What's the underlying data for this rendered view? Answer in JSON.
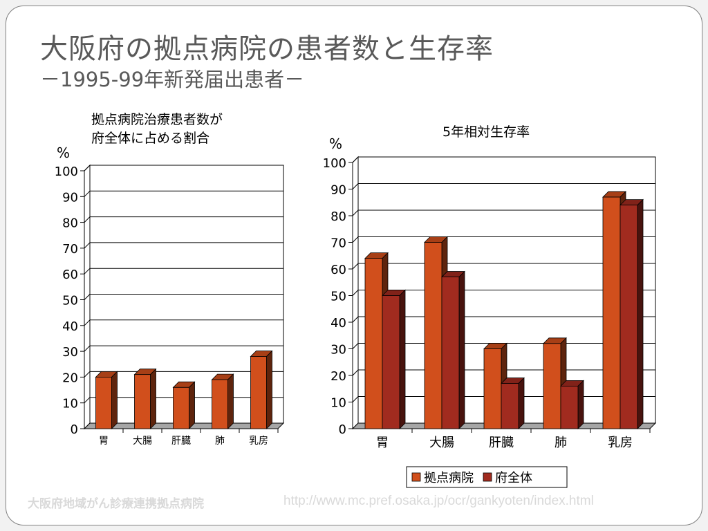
{
  "title": "大阪府の拠点病院の患者数と生存率",
  "subtitle": "－1995-99年新発届出患者－",
  "footer": {
    "org": "大阪府地域がん診療連携拠点病院",
    "url": "http://www.mc.pref.osaka.jp/ocr/gankyoten/index.html"
  },
  "colors": {
    "hospital": "#d14f1c",
    "prefecture": "#a12b1f"
  },
  "chart_data": [
    {
      "type": "bar",
      "title_lines": [
        "拠点病院治療患者数が",
        "府全体に占める割合"
      ],
      "unit": "%",
      "categories": [
        "胃",
        "大腸",
        "肝臓",
        "肺",
        "乳房"
      ],
      "values": [
        20,
        21,
        16,
        19,
        28
      ],
      "ylim": [
        0,
        100
      ],
      "yticks": [
        "0",
        "10",
        "20",
        "30",
        "40",
        "50",
        "60",
        "70",
        "80",
        "90",
        "100"
      ],
      "grid": true,
      "legend": "none"
    },
    {
      "type": "bar",
      "title": "5年相対生存率",
      "unit": "%",
      "categories": [
        "胃",
        "大腸",
        "肝臓",
        "肺",
        "乳房"
      ],
      "series": [
        {
          "name": "拠点病院",
          "values": [
            64,
            70,
            30,
            32,
            87
          ]
        },
        {
          "name": "府全体",
          "values": [
            50,
            57,
            17,
            16,
            84
          ]
        }
      ],
      "ylim": [
        0,
        100
      ],
      "yticks": [
        "0",
        "10",
        "20",
        "30",
        "40",
        "50",
        "60",
        "70",
        "80",
        "90",
        "100"
      ],
      "grid": true,
      "legend": "bottom"
    }
  ]
}
